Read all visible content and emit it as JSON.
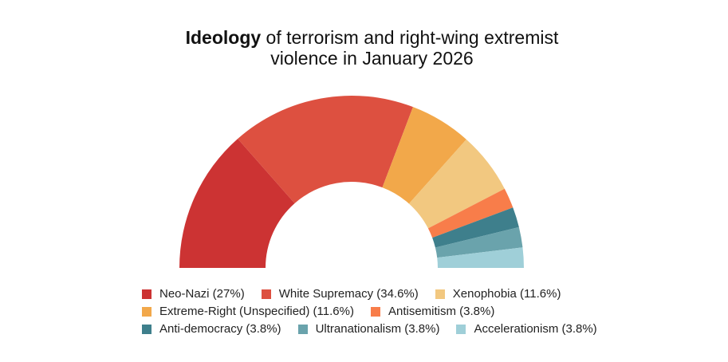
{
  "title": {
    "bold_part": "Ideology",
    "rest_line1": "of terrorism and right-wing extremist",
    "line2": "violence in January 2026"
  },
  "chart_data": {
    "type": "pie",
    "variant": "half-donut",
    "title": "Ideology of terrorism and right-wing extremist violence in January 2026",
    "categories": [
      "Neo-Nazi",
      "White Supremacy",
      "Extreme-Right (Unspecified)",
      "Xenophobia",
      "Antisemitism",
      "Anti-democracy",
      "Ultranationalism",
      "Accelerationism"
    ],
    "values": [
      27,
      34.6,
      11.6,
      11.6,
      3.8,
      3.8,
      3.8,
      3.8
    ],
    "colors": [
      "#cc3333",
      "#dd5040",
      "#f2a84a",
      "#f2c880",
      "#f87d4a",
      "#3e7f8c",
      "#6aa3ac",
      "#9fcfd8"
    ],
    "legend_position": "bottom"
  },
  "legend": {
    "rows": [
      [
        {
          "label": "Neo-Nazi (27%)",
          "color": "#cc3333"
        },
        {
          "label": "White Supremacy (34.6%)",
          "color": "#dd5040"
        },
        {
          "label": "Xenophobia (11.6%)",
          "color": "#f2c880"
        }
      ],
      [
        {
          "label": "Extreme-Right (Unspecified) (11.6%)",
          "color": "#f2a84a"
        },
        {
          "label": "Antisemitism (3.8%)",
          "color": "#f87d4a"
        }
      ],
      [
        {
          "label": "Anti-democracy (3.8%)",
          "color": "#3e7f8c"
        },
        {
          "label": "Ultranationalism (3.8%)",
          "color": "#6aa3ac"
        },
        {
          "label": "Accelerationism (3.8%)",
          "color": "#9fcfd8"
        }
      ]
    ]
  }
}
